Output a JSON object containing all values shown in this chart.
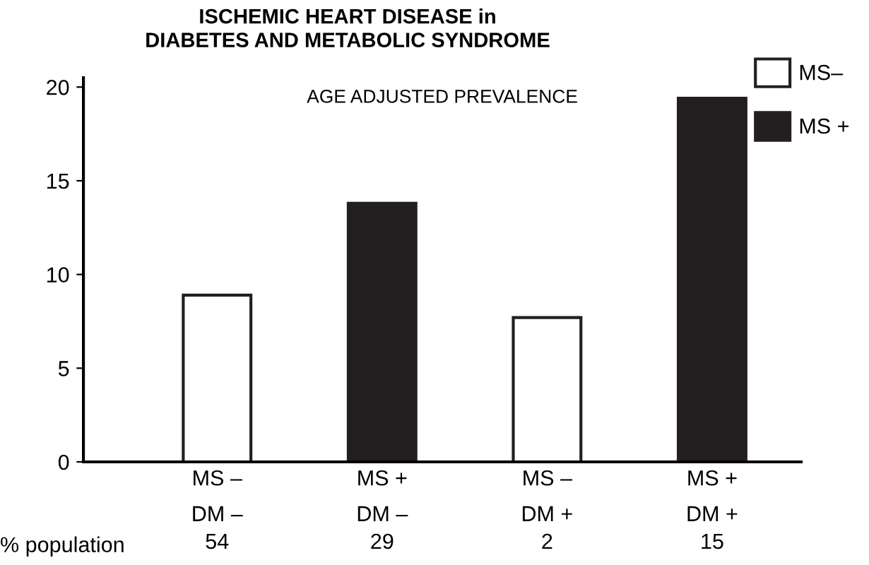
{
  "chart_data": {
    "type": "bar",
    "title": "ISCHEMIC HEART DISEASE in\nDIABETES AND METABOLIC SYNDROME",
    "subtitle": "AGE ADJUSTED PREVALENCE",
    "categories": [
      "MS –\nDM –",
      "MS +\nDM –",
      "MS –\nDM +",
      "MS +\nDM +"
    ],
    "series": [
      {
        "name": "MS–",
        "color": "#ffffff",
        "values": [
          8.9,
          null,
          7.7,
          null
        ]
      },
      {
        "name": "MS +",
        "color": "#231f20",
        "values": [
          null,
          13.8,
          null,
          19.4
        ]
      }
    ],
    "ylim": [
      0,
      20.5
    ],
    "yticks": [
      0,
      5,
      10,
      15,
      20
    ],
    "grid": false,
    "legend": "top right",
    "annotations": [
      "% population",
      "54",
      "29",
      "2",
      "15"
    ]
  }
}
